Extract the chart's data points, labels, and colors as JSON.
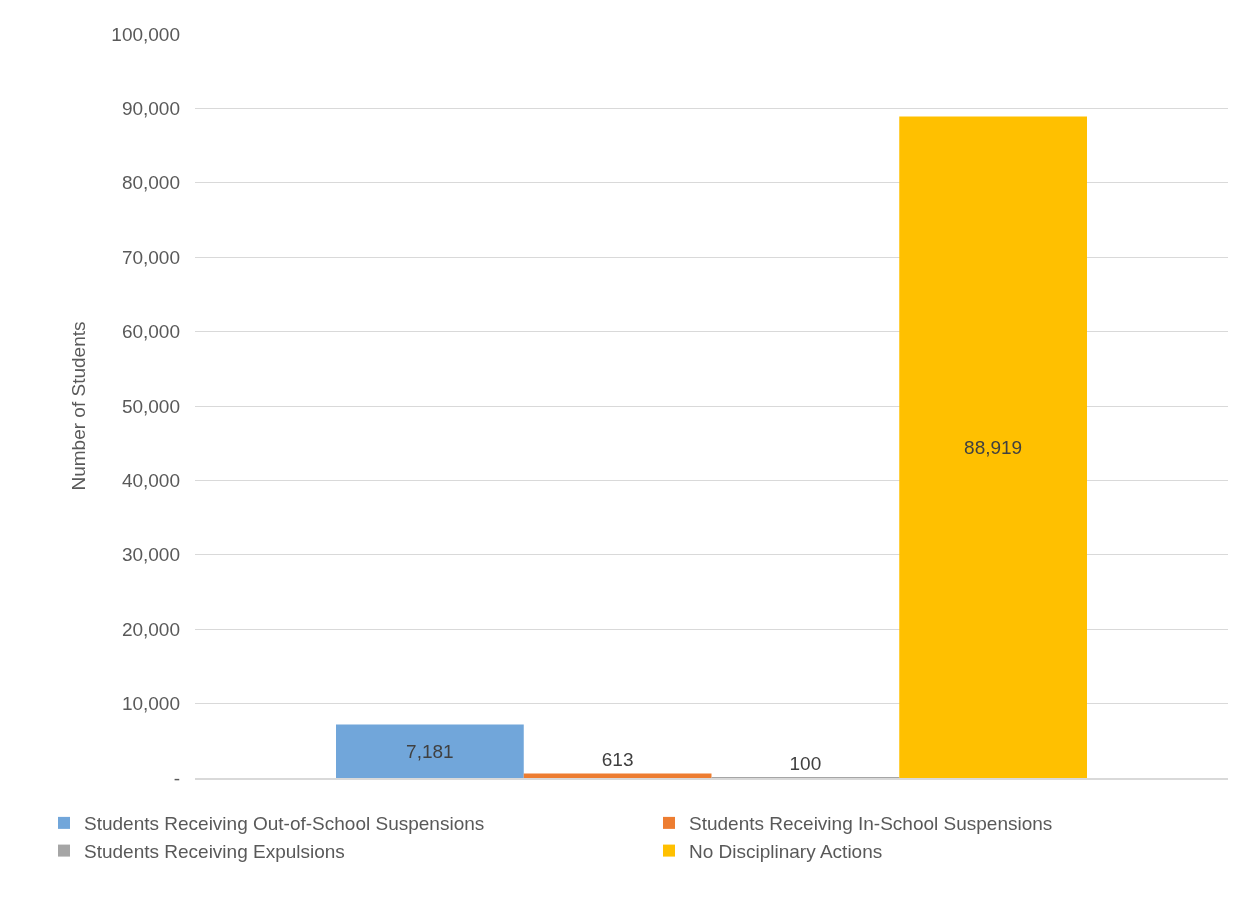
{
  "chart_data": {
    "type": "bar",
    "ylabel": "Number of Students",
    "categories": [
      null
    ],
    "series": [
      {
        "name": "Students Receiving Out-of-School Suspensions",
        "color": "#71a6da",
        "values": [
          7181
        ],
        "value_labels": [
          "7,181"
        ]
      },
      {
        "name": "Students Receiving In-School Suspensions",
        "color": "#ed7d31",
        "values": [
          613
        ],
        "value_labels": [
          "613"
        ]
      },
      {
        "name": "Students Receiving Expulsions",
        "color": "#a5a5a5",
        "values": [
          100
        ],
        "value_labels": [
          "100"
        ]
      },
      {
        "name": "No Disciplinary Actions",
        "color": "#ffc000",
        "values": [
          88919
        ],
        "value_labels": [
          "88,919"
        ]
      }
    ],
    "ylim": [
      0,
      100000
    ],
    "yticks": [
      {
        "value": 0,
        "label": "-"
      },
      {
        "value": 10000,
        "label": "10,000"
      },
      {
        "value": 20000,
        "label": "20,000"
      },
      {
        "value": 30000,
        "label": "30,000"
      },
      {
        "value": 40000,
        "label": "40,000"
      },
      {
        "value": 50000,
        "label": "50,000"
      },
      {
        "value": 60000,
        "label": "60,000"
      },
      {
        "value": 70000,
        "label": "70,000"
      },
      {
        "value": 80000,
        "label": "80,000"
      },
      {
        "value": 90000,
        "label": "90,000"
      },
      {
        "value": 100000,
        "label": "100,000"
      }
    ],
    "grid": "y",
    "legend": "bottom"
  }
}
